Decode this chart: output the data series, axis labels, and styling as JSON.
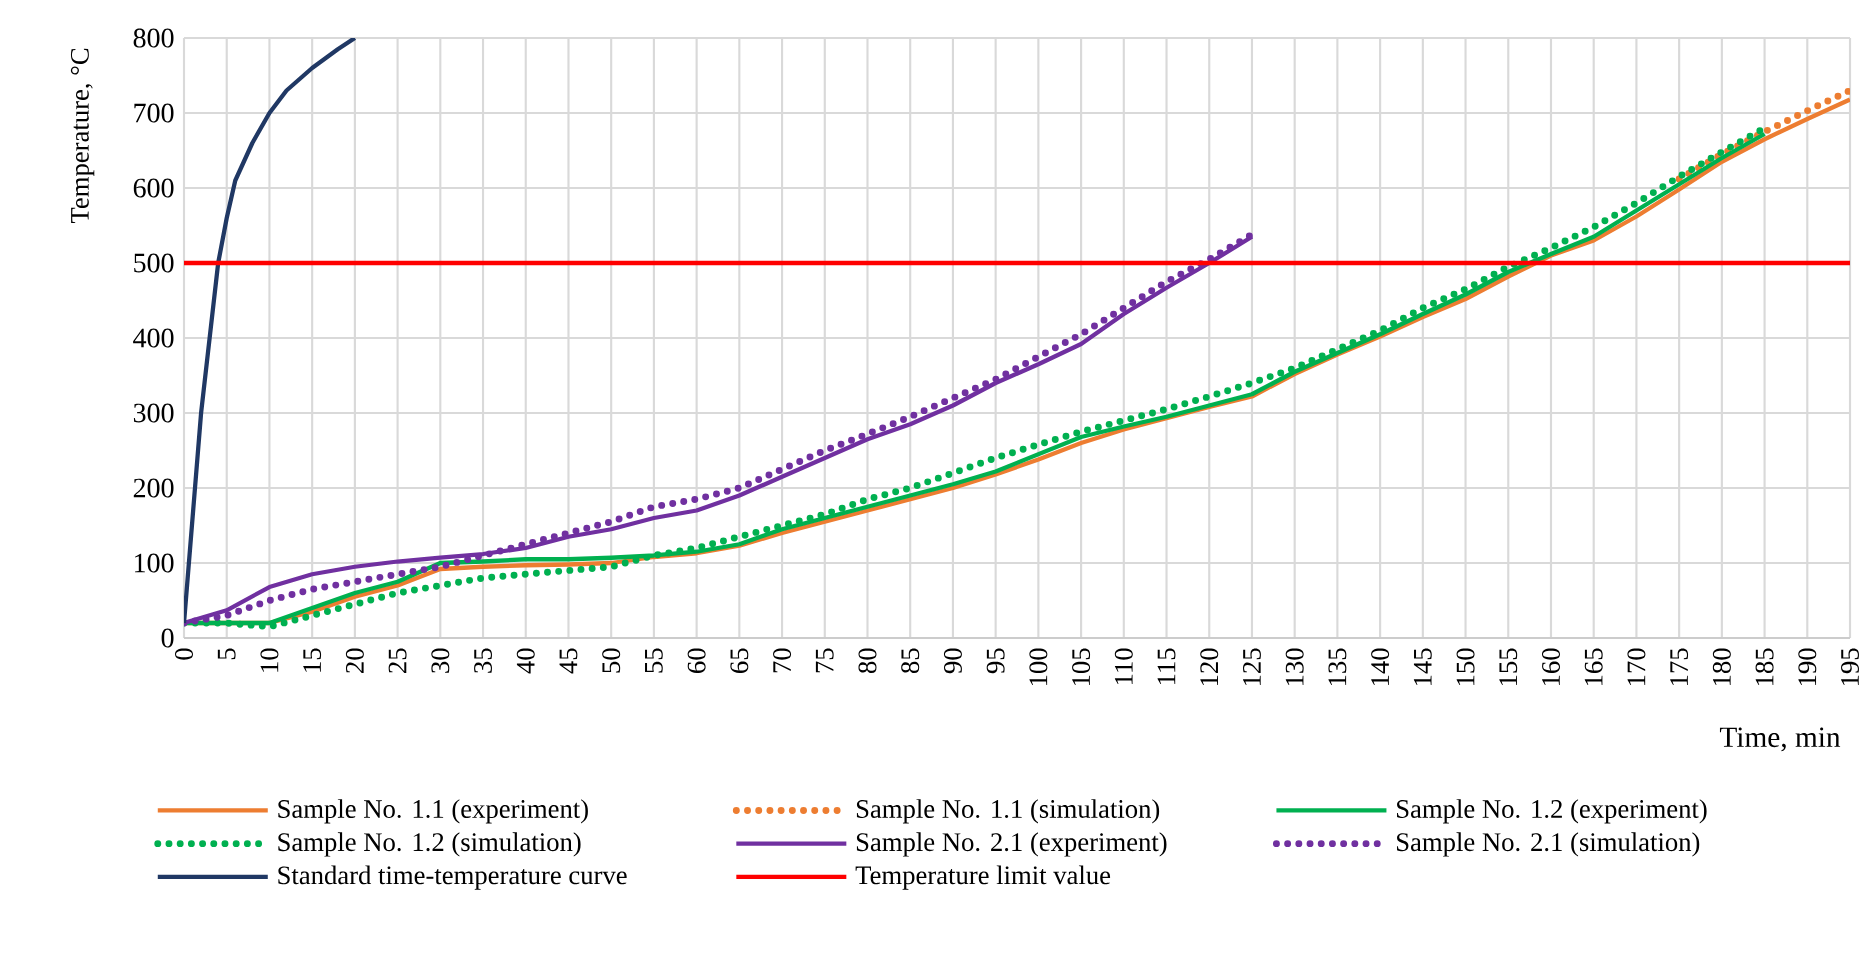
{
  "chart_data": {
    "type": "line",
    "xlabel": "Time, min",
    "ylabel": "Temperature, °C",
    "xlim": [
      0,
      195
    ],
    "ylim": [
      0,
      800
    ],
    "xticks": [
      0,
      5,
      10,
      15,
      20,
      25,
      30,
      35,
      40,
      45,
      50,
      55,
      60,
      65,
      70,
      75,
      80,
      85,
      90,
      95,
      100,
      105,
      110,
      115,
      120,
      125,
      130,
      135,
      140,
      145,
      150,
      155,
      160,
      165,
      170,
      175,
      180,
      185,
      190,
      195
    ],
    "yticks": [
      0,
      100,
      200,
      300,
      400,
      500,
      600,
      700,
      800
    ],
    "grid": true,
    "legend": "bottom",
    "marker": "none",
    "series": [
      {
        "name": "Sample No. 1.1 (experiment)",
        "color": "#ed7d31",
        "line_style": "solid",
        "x": [
          0,
          5,
          10,
          15,
          20,
          25,
          30,
          35,
          40,
          45,
          50,
          55,
          60,
          65,
          70,
          75,
          80,
          85,
          90,
          95,
          100,
          105,
          110,
          115,
          120,
          125,
          130,
          135,
          140,
          145,
          150,
          155,
          160,
          165,
          170,
          175,
          180,
          185,
          190,
          195
        ],
        "values": [
          20,
          20,
          20,
          35,
          55,
          70,
          92,
          95,
          97,
          98,
          100,
          108,
          113,
          123,
          140,
          155,
          170,
          185,
          200,
          218,
          238,
          260,
          278,
          293,
          308,
          322,
          352,
          378,
          402,
          428,
          452,
          482,
          510,
          530,
          562,
          598,
          635,
          665,
          692,
          718
        ]
      },
      {
        "name": "Sample No. 1.1 (simulation)",
        "color": "#ed7d31",
        "line_style": "dotted",
        "x": [
          175,
          180,
          185,
          190,
          195
        ],
        "values": [
          612,
          645,
          675,
          703,
          730
        ]
      },
      {
        "name": "Sample No. 1.2 (experiment)",
        "color": "#00b050",
        "line_style": "solid",
        "x": [
          0,
          5,
          10,
          15,
          20,
          25,
          30,
          35,
          40,
          45,
          50,
          55,
          60,
          65,
          70,
          75,
          80,
          85,
          90,
          95,
          100,
          105,
          110,
          115,
          120,
          125,
          130,
          135,
          140,
          145,
          150,
          155,
          160,
          165,
          170,
          175,
          180,
          185
        ],
        "values": [
          20,
          20,
          20,
          40,
          60,
          75,
          100,
          102,
          105,
          105,
          107,
          110,
          115,
          125,
          145,
          160,
          175,
          190,
          205,
          222,
          245,
          268,
          282,
          295,
          310,
          325,
          355,
          380,
          405,
          432,
          458,
          488,
          512,
          535,
          570,
          605,
          640,
          672
        ]
      },
      {
        "name": "Sample No. 1.2 (simulation)",
        "color": "#00b050",
        "line_style": "dotted",
        "x": [
          0,
          5,
          10,
          15,
          20,
          25,
          30,
          35,
          40,
          45,
          50,
          55,
          60,
          65,
          70,
          75,
          80,
          85,
          90,
          95,
          100,
          105,
          110,
          115,
          120,
          125,
          130,
          135,
          140,
          145,
          150,
          155,
          160,
          165,
          170,
          175,
          180,
          185
        ],
        "values": [
          20,
          20,
          15,
          30,
          45,
          60,
          70,
          80,
          85,
          90,
          95,
          110,
          120,
          135,
          150,
          165,
          185,
          200,
          220,
          240,
          258,
          275,
          290,
          305,
          322,
          340,
          360,
          385,
          410,
          440,
          465,
          495,
          520,
          548,
          580,
          615,
          648,
          680
        ]
      },
      {
        "name": "Sample No. 2.1 (experiment)",
        "color": "#7030a0",
        "line_style": "solid",
        "x": [
          0,
          5,
          10,
          15,
          20,
          25,
          30,
          35,
          40,
          45,
          50,
          55,
          60,
          65,
          70,
          75,
          80,
          85,
          90,
          95,
          100,
          105,
          110,
          115,
          120,
          125
        ],
        "values": [
          20,
          37,
          68,
          85,
          95,
          102,
          107,
          112,
          120,
          135,
          145,
          160,
          170,
          190,
          215,
          240,
          265,
          285,
          310,
          340,
          365,
          392,
          432,
          467,
          500,
          535
        ]
      },
      {
        "name": "Sample No. 2.1 (simulation)",
        "color": "#7030a0",
        "line_style": "dotted",
        "x": [
          0,
          5,
          10,
          15,
          20,
          25,
          30,
          35,
          40,
          45,
          50,
          55,
          60,
          65,
          70,
          75,
          80,
          85,
          90,
          95,
          100,
          105,
          110,
          115,
          120,
          125
        ],
        "values": [
          20,
          30,
          50,
          65,
          75,
          85,
          95,
          110,
          125,
          140,
          155,
          175,
          185,
          200,
          225,
          250,
          272,
          295,
          320,
          345,
          375,
          405,
          440,
          475,
          505,
          538
        ]
      },
      {
        "name": "Standard time-temperature curve",
        "color": "#203864",
        "line_style": "solid",
        "x": [
          0,
          2,
          4,
          5,
          6,
          8,
          10,
          12,
          15,
          18,
          20
        ],
        "values": [
          20,
          300,
          500,
          560,
          610,
          660,
          700,
          730,
          760,
          785,
          800
        ]
      },
      {
        "name": "Temperature limit value",
        "color": "#ff0000",
        "line_style": "solid",
        "x": [
          0,
          195
        ],
        "values": [
          500,
          500
        ]
      }
    ]
  }
}
